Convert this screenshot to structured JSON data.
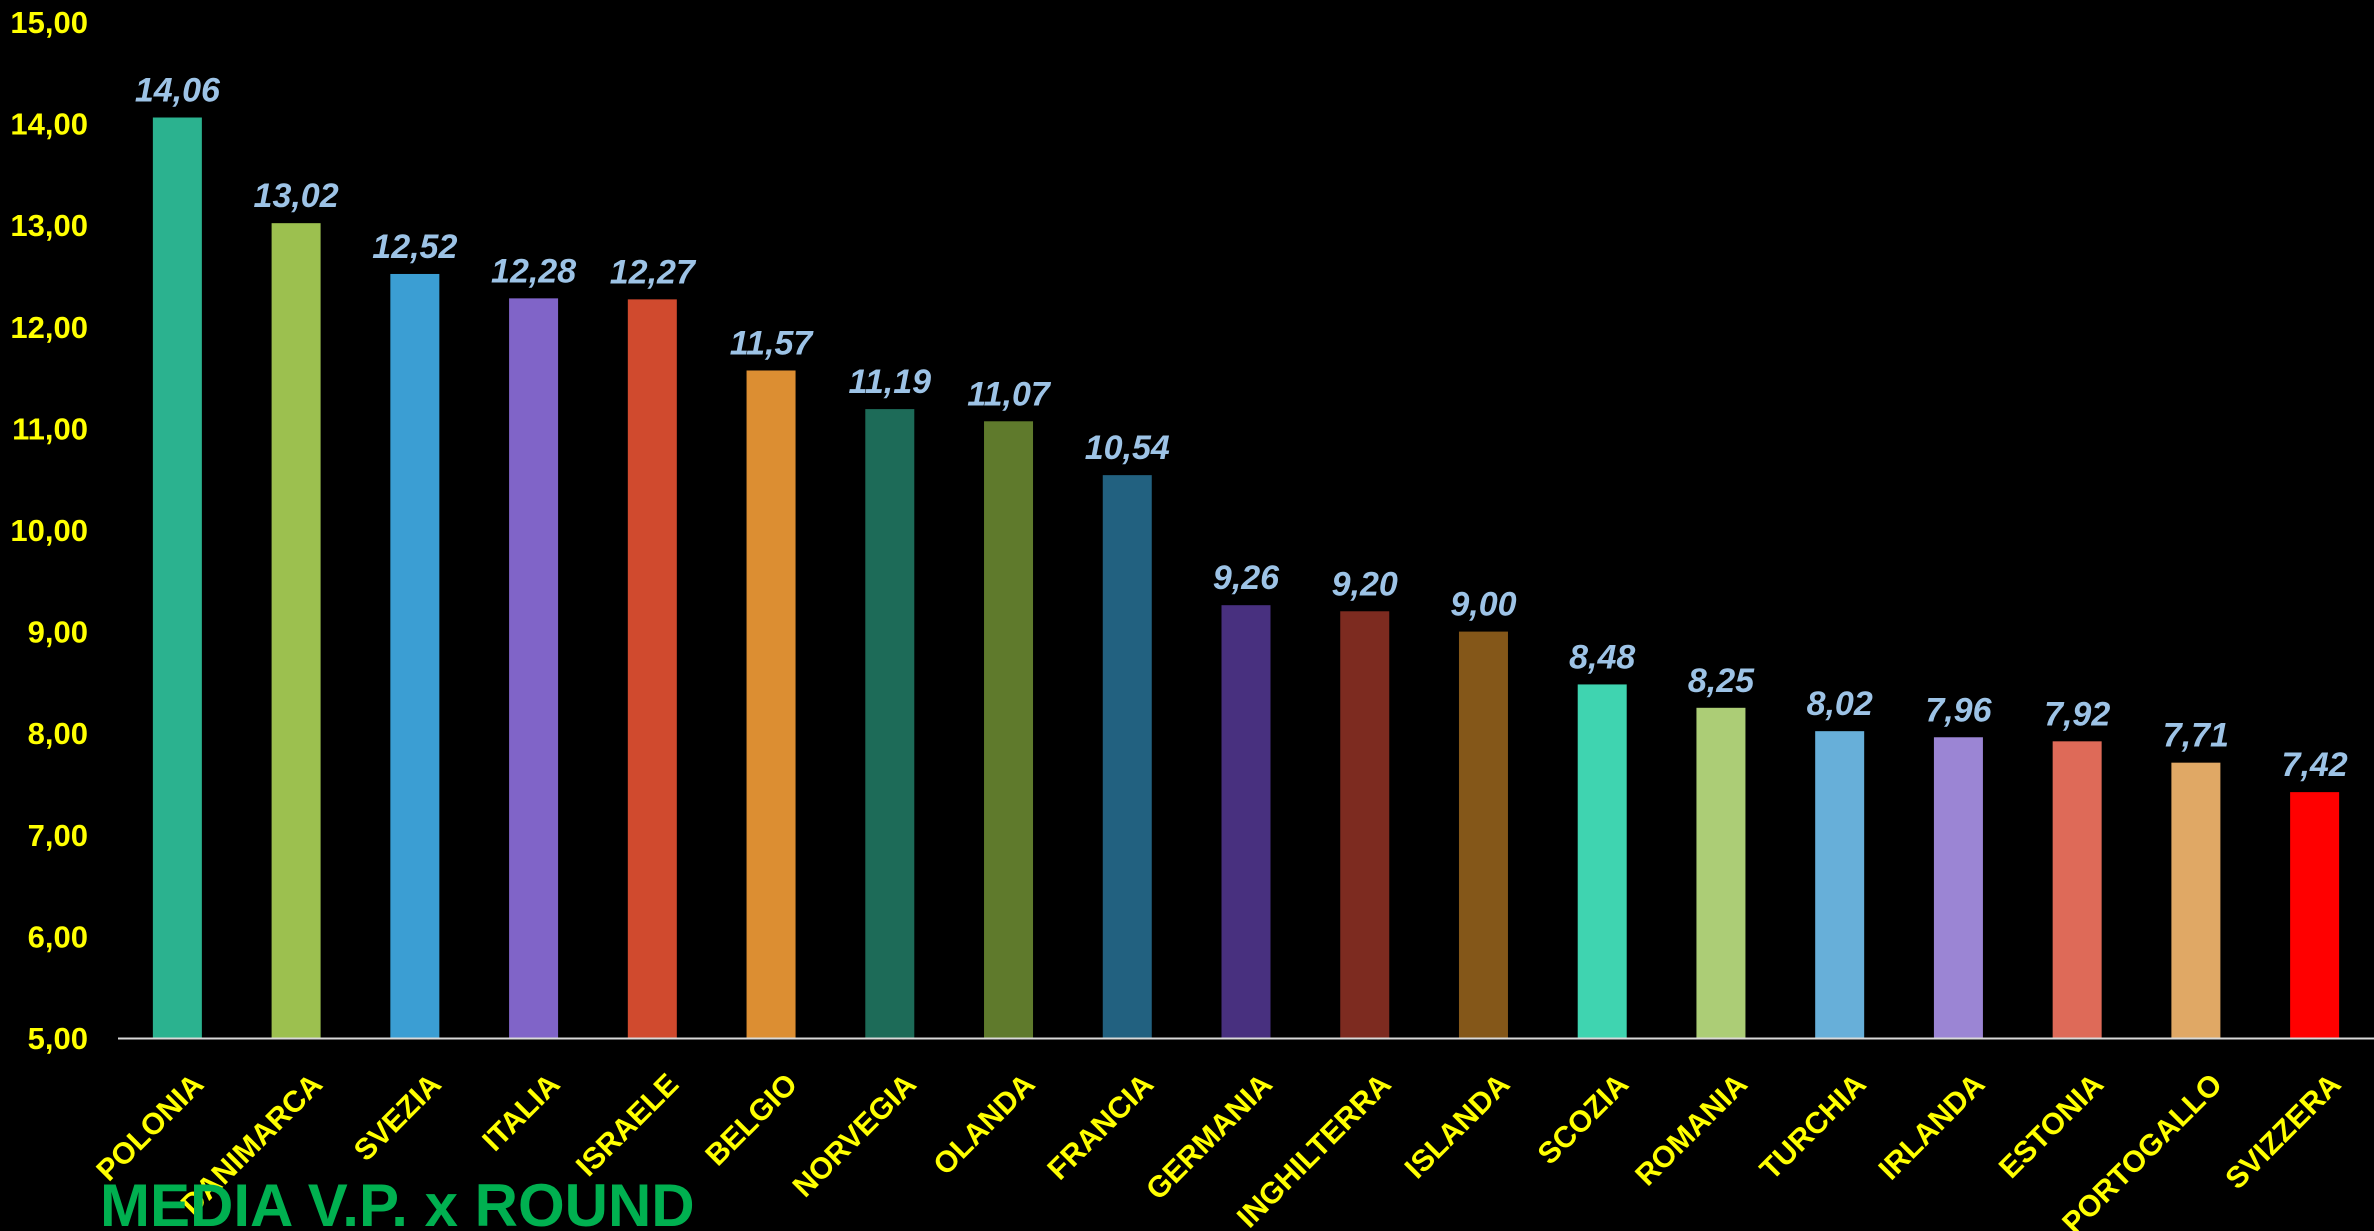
{
  "chart_data": {
    "type": "bar",
    "title": "MEDIA V.P. x ROUND",
    "categories": [
      "POLONIA",
      "DANIMARCA",
      "SVEZIA",
      "ITALIA",
      "ISRAELE",
      "BELGIO",
      "NORVEGIA",
      "OLANDA",
      "FRANCIA",
      "GERMANIA",
      "INGHILTERRA",
      "ISLANDA",
      "SCOZIA",
      "ROMANIA",
      "TURCHIA",
      "IRLANDA",
      "ESTONIA",
      "PORTOGALLO",
      "SVIZZERA"
    ],
    "values": [
      14.06,
      13.02,
      12.52,
      12.28,
      12.27,
      11.57,
      11.19,
      11.07,
      10.54,
      9.26,
      9.2,
      9.0,
      8.48,
      8.25,
      8.02,
      7.96,
      7.92,
      7.71,
      7.42
    ],
    "value_labels": [
      "14,06",
      "13,02",
      "12,52",
      "12,28",
      "12,27",
      "11,57",
      "11,19",
      "11,07",
      "10,54",
      "9,26",
      "9,20",
      "9,00",
      "8,48",
      "8,25",
      "8,02",
      "7,96",
      "7,92",
      "7,71",
      "7,42"
    ],
    "colors": [
      "#2bb28f",
      "#9cc04f",
      "#3b9ed3",
      "#8064c8",
      "#d04a2e",
      "#dc8e32",
      "#1d6b58",
      "#5f7a2c",
      "#226180",
      "#48307f",
      "#7d2b20",
      "#845719",
      "#3fd4b0",
      "#accd76",
      "#67afd9",
      "#9b85d4",
      "#de6a58",
      "#e0a865",
      "#ff0000"
    ],
    "yticks": [
      "5,00",
      "6,00",
      "7,00",
      "8,00",
      "9,00",
      "10,00",
      "11,00",
      "12,00",
      "13,00",
      "14,00",
      "15,00"
    ],
    "ylim": [
      5,
      15
    ],
    "grid": false,
    "xlabel": "",
    "ylabel": ""
  }
}
